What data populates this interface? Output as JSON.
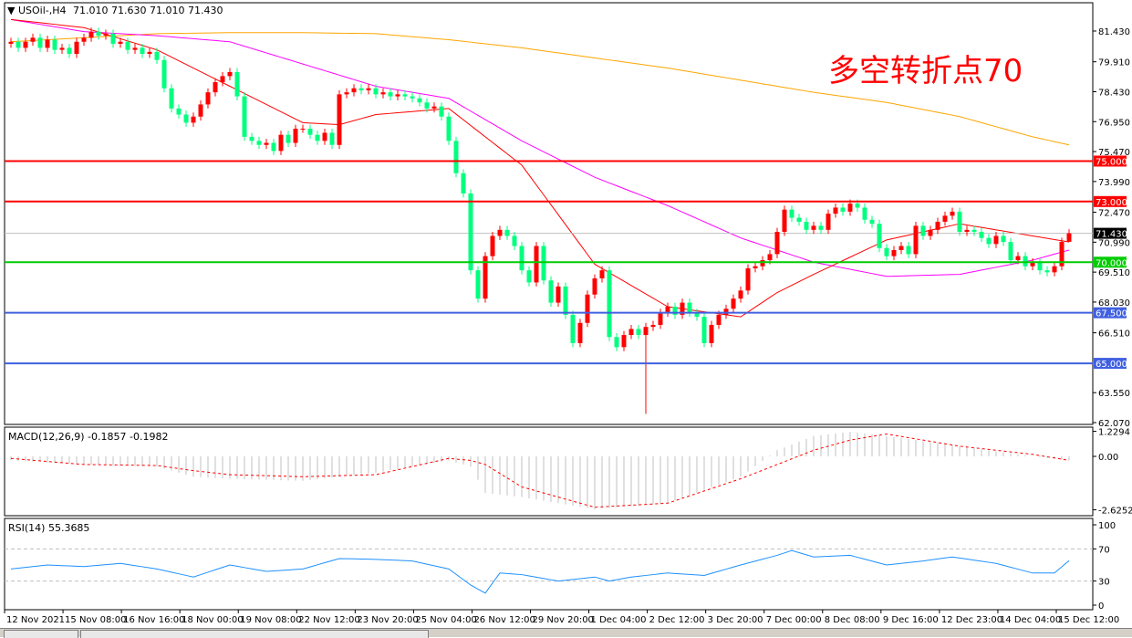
{
  "header": {
    "symbol_label": "USOil-,H4",
    "ohlc": "71.010 71.630 71.010 71.430"
  },
  "annotation": "多空转折点70",
  "colors": {
    "up": "#ff0000",
    "down": "#00ff7f",
    "ma_fast": "#ff0000",
    "ma_mid": "#ff00ff",
    "ma_slow": "#ffa500",
    "macd_hist": "#c0c0c0",
    "macd_signal": "#ff0000",
    "rsi": "#1e90ff"
  },
  "chart_data": [
    {
      "type": "candlestick",
      "title": "USOil-,H4",
      "price_axis_ticks": [
        "81.430",
        "79.910",
        "78.430",
        "76.950",
        "75.470",
        "73.990",
        "72.470",
        "70.990",
        "69.510",
        "68.030",
        "66.510",
        "63.550",
        "62.070"
      ],
      "ylim": [
        62.07,
        81.43
      ],
      "time_labels": [
        "12 Nov 2021",
        "15 Nov 08:00",
        "16 Nov 16:00",
        "18 Nov 00:00",
        "19 Nov 08:00",
        "22 Nov 12:00",
        "23 Nov 20:00",
        "25 Nov 04:00",
        "26 Nov 12:00",
        "29 Nov 20:00",
        "1 Dec 04:00",
        "2 Dec 12:00",
        "3 Dec 20:00",
        "7 Dec 00:00",
        "8 Dec 08:00",
        "9 Dec 16:00",
        "12 Dec 23:00",
        "14 Dec 04:00",
        "15 Dec 12:00"
      ],
      "first_open": 80.8,
      "closes": [
        80.9,
        80.6,
        80.9,
        81.1,
        80.6,
        81.0,
        80.5,
        80.6,
        80.3,
        80.9,
        81.1,
        81.4,
        81.2,
        81.3,
        80.8,
        80.9,
        80.5,
        80.6,
        80.3,
        80.4,
        80.0,
        78.6,
        77.6,
        77.3,
        76.9,
        77.2,
        77.8,
        78.4,
        78.9,
        79.2,
        79.4,
        78.2,
        76.2,
        76.0,
        75.8,
        75.9,
        75.5,
        76.3,
        75.9,
        76.6,
        76.6,
        76.3,
        76.0,
        76.4,
        75.8,
        78.3,
        78.4,
        78.6,
        78.5,
        78.6,
        78.3,
        78.4,
        78.2,
        78.3,
        78.2,
        78.1,
        77.9,
        77.6,
        77.7,
        77.2,
        76.0,
        74.4,
        73.4,
        69.6,
        68.2,
        70.3,
        71.3,
        71.6,
        71.3,
        70.8,
        69.6,
        69.0,
        70.8,
        69.1,
        68.0,
        68.8,
        67.4,
        66.0,
        67.0,
        68.4,
        69.2,
        69.6,
        66.3,
        65.8,
        66.4,
        66.7,
        66.4,
        66.8,
        66.9,
        67.5,
        67.8,
        67.4,
        68.0,
        67.5,
        67.3,
        66.0,
        66.9,
        67.4,
        67.7,
        68.2,
        68.6,
        69.7,
        69.8,
        70.1,
        70.4,
        71.5,
        72.6,
        72.2,
        72.0,
        71.6,
        71.8,
        71.6,
        72.4,
        72.7,
        72.5,
        72.9,
        72.7,
        72.1,
        71.9,
        70.7,
        70.3,
        70.6,
        70.8,
        70.4,
        71.8,
        71.3,
        71.6,
        72.0,
        72.3,
        72.5,
        71.5,
        71.6,
        71.5,
        71.2,
        70.9,
        71.3,
        71.0,
        70.1,
        70.3,
        69.8,
        70.0,
        69.6,
        69.5,
        69.8,
        71.01,
        71.43
      ],
      "last_bar": {
        "open": 71.01,
        "high": 71.63,
        "low": 71.01,
        "close": 71.43
      },
      "notable_low": {
        "bar": 87,
        "value": 62.5
      },
      "moving_averages": [
        {
          "role": "slow",
          "sample_bars": [
            0,
            10,
            20,
            30,
            40,
            50,
            60,
            70,
            80,
            90,
            100,
            110,
            120,
            130,
            140,
            145
          ],
          "values": [
            80.9,
            81.1,
            81.3,
            81.35,
            81.35,
            81.3,
            81.0,
            80.6,
            80.1,
            79.6,
            79.0,
            78.4,
            77.9,
            77.2,
            76.2,
            75.8
          ]
        },
        {
          "role": "mid",
          "sample_bars": [
            0,
            10,
            20,
            30,
            40,
            50,
            60,
            70,
            80,
            90,
            100,
            110,
            120,
            130,
            140,
            145
          ],
          "values": [
            82.0,
            81.4,
            81.2,
            80.9,
            79.8,
            78.7,
            78.1,
            76.0,
            74.2,
            72.8,
            71.2,
            70.0,
            69.3,
            69.4,
            70.1,
            70.6
          ]
        },
        {
          "role": "fast",
          "sample_bars": [
            0,
            10,
            20,
            30,
            40,
            45,
            50,
            60,
            70,
            80,
            90,
            100,
            105,
            110,
            120,
            130,
            140,
            145
          ],
          "values": [
            82.0,
            81.6,
            80.5,
            78.7,
            76.9,
            76.8,
            77.3,
            77.6,
            74.8,
            69.9,
            67.8,
            67.3,
            68.5,
            69.4,
            71.1,
            71.9,
            71.3,
            71.0
          ]
        }
      ],
      "horizontal_levels": [
        {
          "value": 75.0,
          "label": "75.000",
          "color": "#ff0000"
        },
        {
          "value": 73.0,
          "label": "73.000",
          "color": "#ff0000"
        },
        {
          "value": 70.0,
          "label": "70.000",
          "color": "#00cc00"
        },
        {
          "value": 67.5,
          "label": "67.500",
          "color": "#4060e0"
        },
        {
          "value": 65.0,
          "label": "65.000",
          "color": "#4060e0"
        }
      ],
      "current_price": {
        "value": 71.43,
        "label": "71.430"
      }
    },
    {
      "type": "bar+line",
      "title": "MACD(12,26,9) -0.1857 -0.1982",
      "axis_ticks": [
        "1.2294",
        "0.00",
        "-2.6252"
      ],
      "ylim": [
        -2.6252,
        1.2294
      ],
      "sample_bars": [
        0,
        10,
        20,
        25,
        30,
        40,
        50,
        60,
        63,
        65,
        70,
        80,
        90,
        100,
        105,
        110,
        115,
        120,
        130,
        140,
        145
      ],
      "histogram": [
        -0.2,
        -0.4,
        -0.5,
        -1.0,
        -1.1,
        -1.2,
        -0.8,
        -0.2,
        -0.5,
        -1.8,
        -2.0,
        -2.6,
        -2.3,
        -1.0,
        0.3,
        1.0,
        1.2,
        1.0,
        0.5,
        0.0,
        -0.1857
      ],
      "signal": [
        -0.1,
        -0.4,
        -0.45,
        -0.7,
        -0.9,
        -1.0,
        -0.9,
        -0.1,
        -0.2,
        -0.4,
        -1.5,
        -2.5,
        -2.3,
        -1.1,
        -0.4,
        0.3,
        0.8,
        1.1,
        0.5,
        0.1,
        -0.1982
      ]
    },
    {
      "type": "line",
      "title": "RSI(14) 55.3685",
      "axis_ticks": [
        "100",
        "70",
        "30",
        "0"
      ],
      "ylim": [
        0,
        100
      ],
      "levels": [
        70,
        30
      ],
      "sample_bars": [
        0,
        5,
        10,
        15,
        20,
        25,
        30,
        35,
        40,
        45,
        50,
        55,
        60,
        63,
        65,
        67,
        70,
        75,
        80,
        82,
        85,
        90,
        95,
        100,
        105,
        107,
        110,
        115,
        120,
        125,
        129,
        135,
        140,
        143,
        145
      ],
      "values": [
        45,
        50,
        48,
        52,
        45,
        35,
        50,
        42,
        45,
        58,
        57,
        55,
        45,
        25,
        15,
        40,
        38,
        30,
        35,
        30,
        35,
        40,
        37,
        50,
        62,
        68,
        60,
        62,
        50,
        55,
        60,
        52,
        40,
        40,
        55.3685
      ]
    }
  ]
}
